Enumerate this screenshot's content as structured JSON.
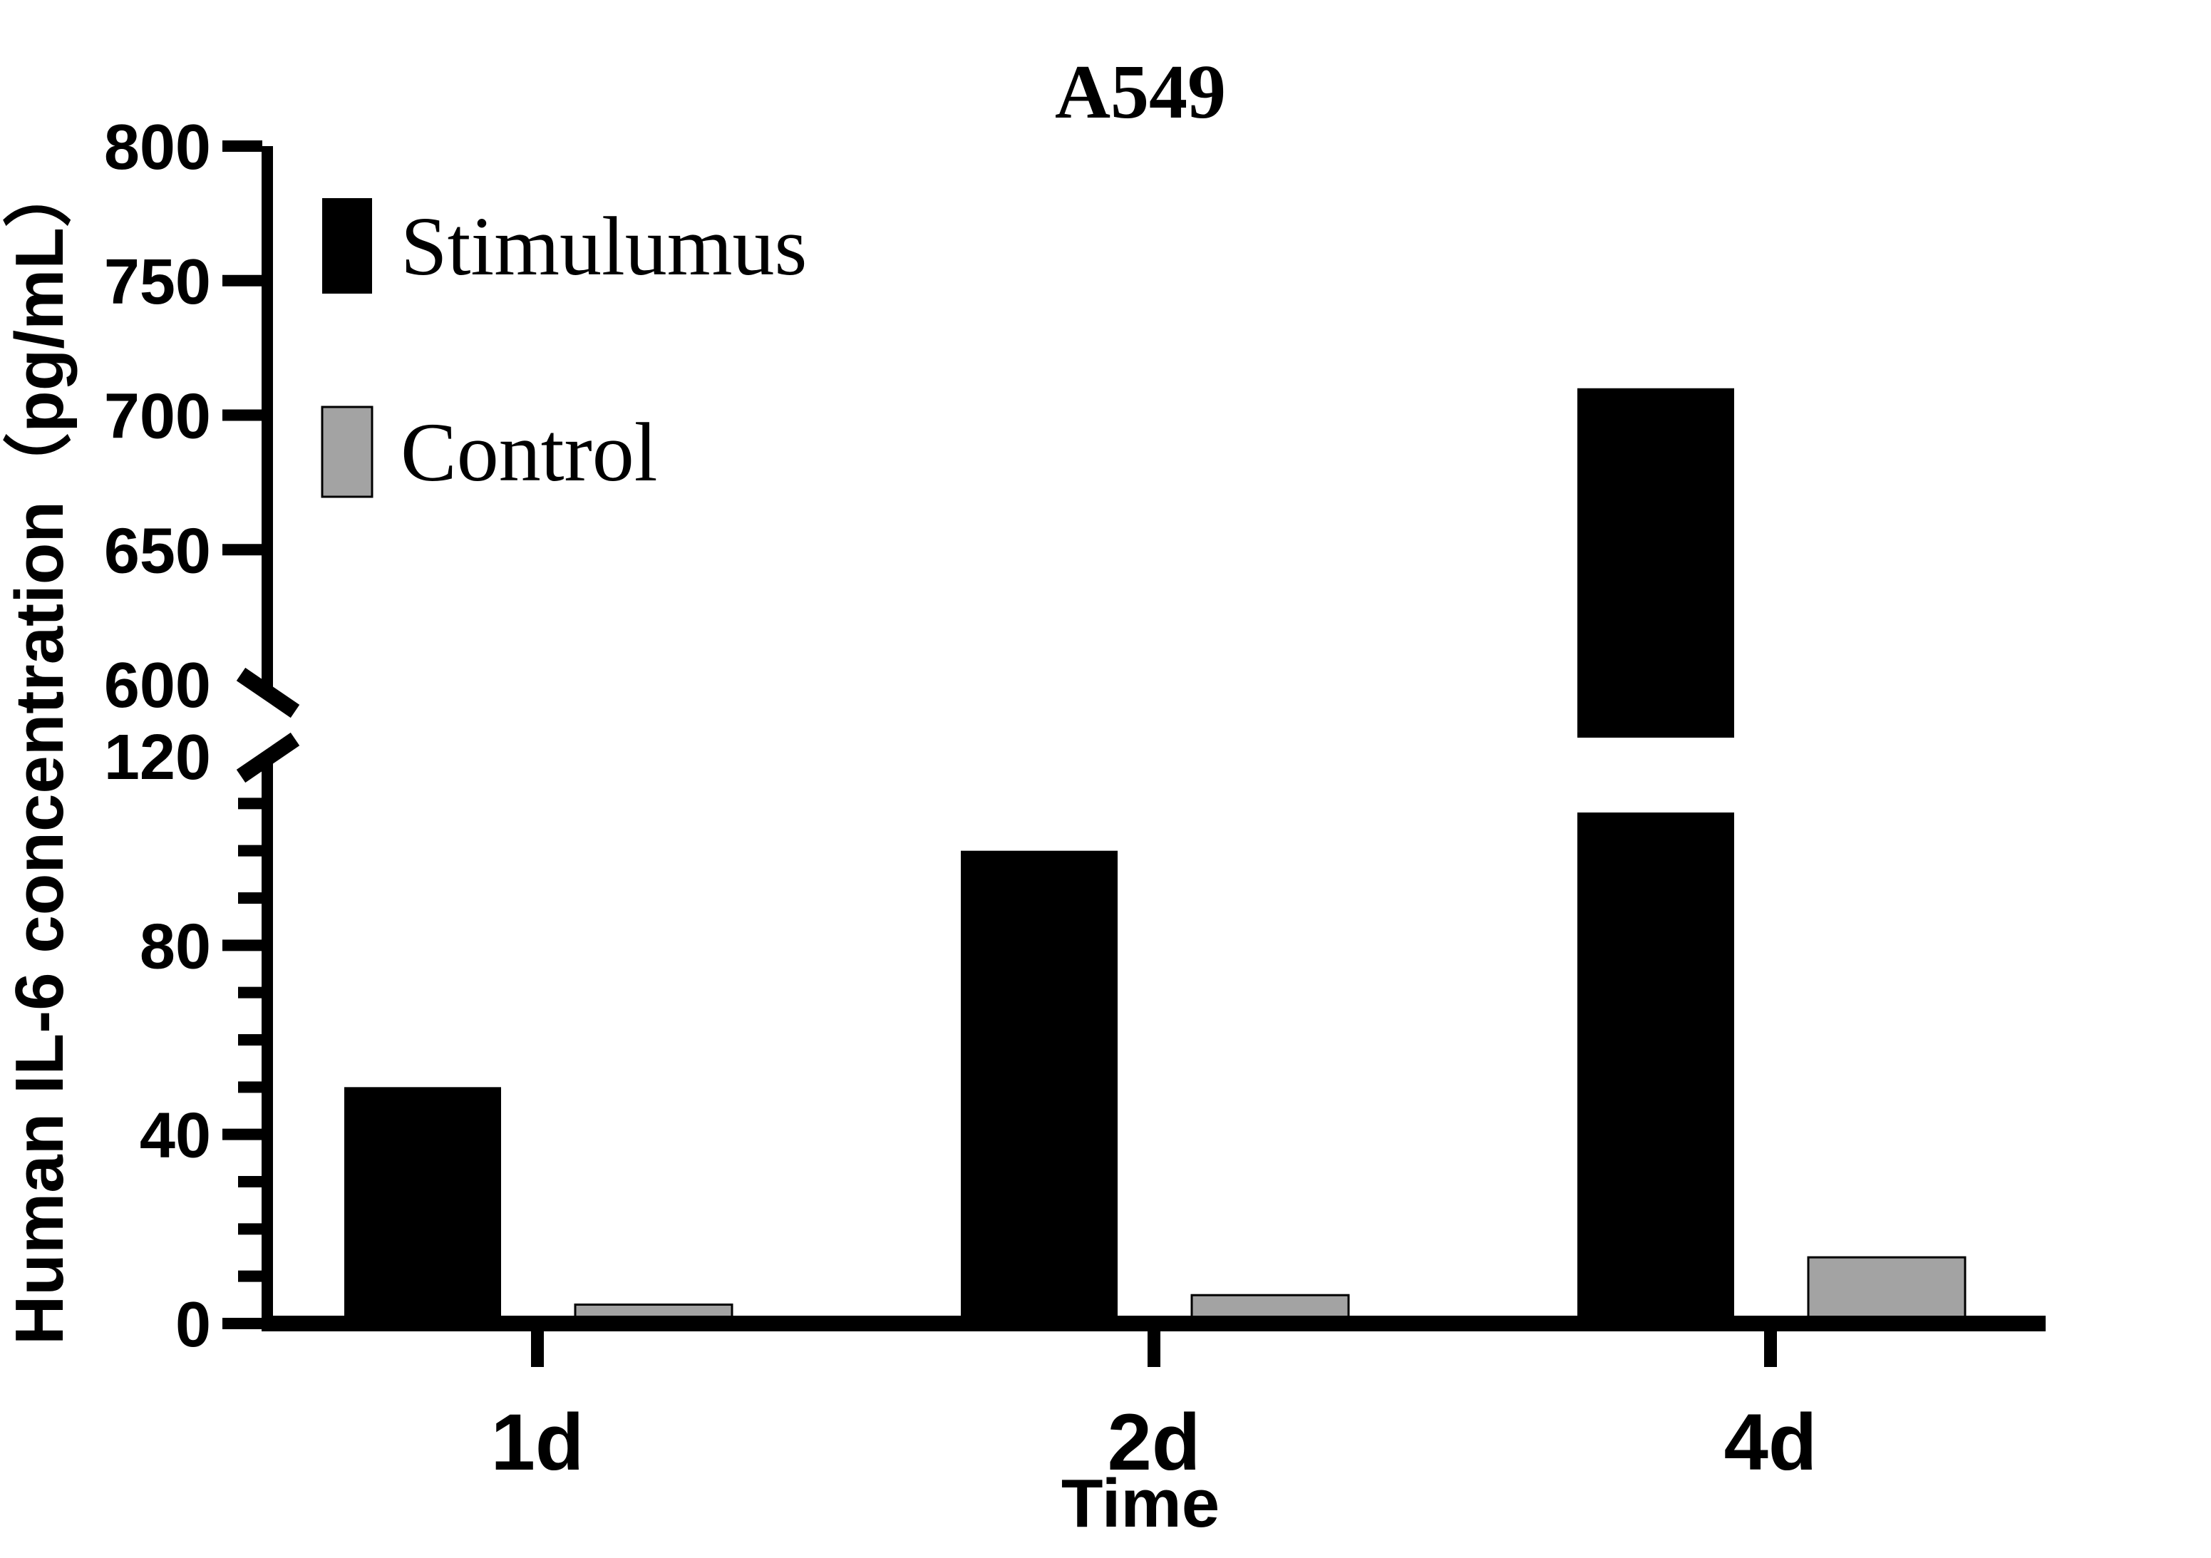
{
  "page": {
    "background_color": "#ffffff"
  },
  "chart_data": {
    "type": "bar",
    "title": "A549",
    "xlabel": "Time",
    "ylabel": "Human IL-6 concentration（pg/mL）",
    "categories": [
      "1d",
      "2d",
      "4d"
    ],
    "series": [
      {
        "name": "Stimulumus",
        "color": "#000000",
        "values": [
          50,
          100,
          710
        ]
      },
      {
        "name": "Control",
        "color": "#a3a3a3",
        "values": [
          4,
          6,
          14
        ]
      }
    ],
    "legend_position": "top-left",
    "grid": false,
    "y_axis": {
      "broken": true,
      "lower_segment": {
        "range": [
          0,
          120
        ],
        "major_ticks": [
          0,
          40,
          80,
          120
        ],
        "minor_tick_step": 10
      },
      "upper_segment": {
        "range": [
          600,
          800
        ],
        "major_ticks": [
          600,
          650,
          700,
          750,
          800
        ]
      }
    },
    "colors": {
      "axis": "#000000",
      "bar_stimulumus": "#000000",
      "bar_control_fill": "#a3a3a3",
      "bar_control_border": "#000000"
    }
  }
}
